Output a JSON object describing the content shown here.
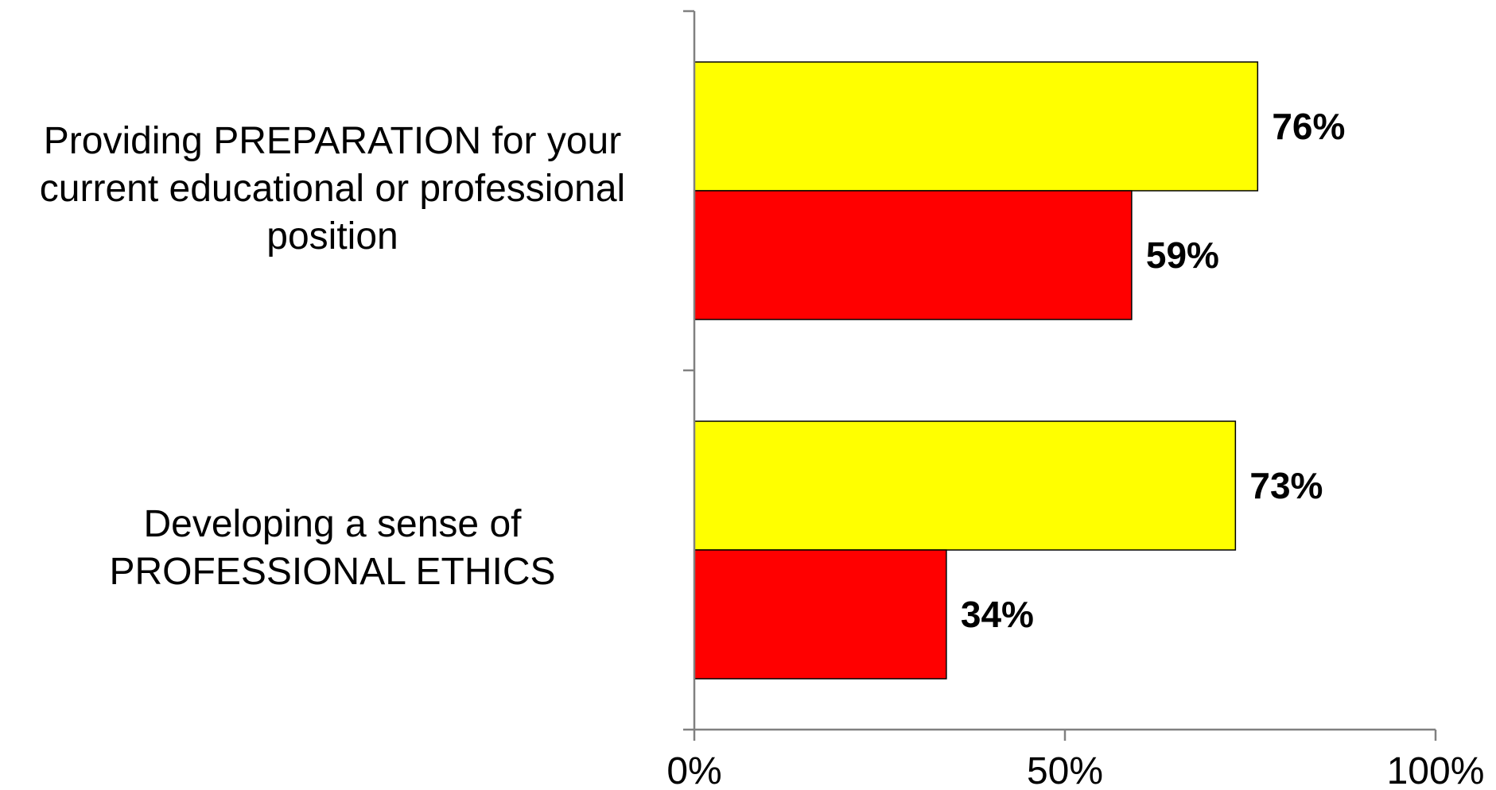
{
  "chart_data": {
    "type": "bar",
    "orientation": "horizontal",
    "categories": [
      "Providing PREPARATION for your current educational or professional position",
      "Developing a sense of PROFESSIONAL ETHICS"
    ],
    "category_lines": [
      [
        "Providing PREPARATION for your",
        "current educational or professional",
        "position"
      ],
      [
        "Developing a sense of",
        "PROFESSIONAL ETHICS"
      ]
    ],
    "series": [
      {
        "color": "#ffff00",
        "values": [
          76,
          73
        ],
        "labels": [
          "76%",
          "73%"
        ]
      },
      {
        "color": "#ff0000",
        "values": [
          59,
          34
        ],
        "labels": [
          "59%",
          "34%"
        ]
      }
    ],
    "xlim": [
      0,
      100
    ],
    "xticks": [
      0,
      50,
      100
    ],
    "xtick_labels": [
      "0%",
      "50%",
      "100%"
    ],
    "title": "",
    "xlabel": "",
    "ylabel": "",
    "grid": false,
    "legend": "none"
  }
}
